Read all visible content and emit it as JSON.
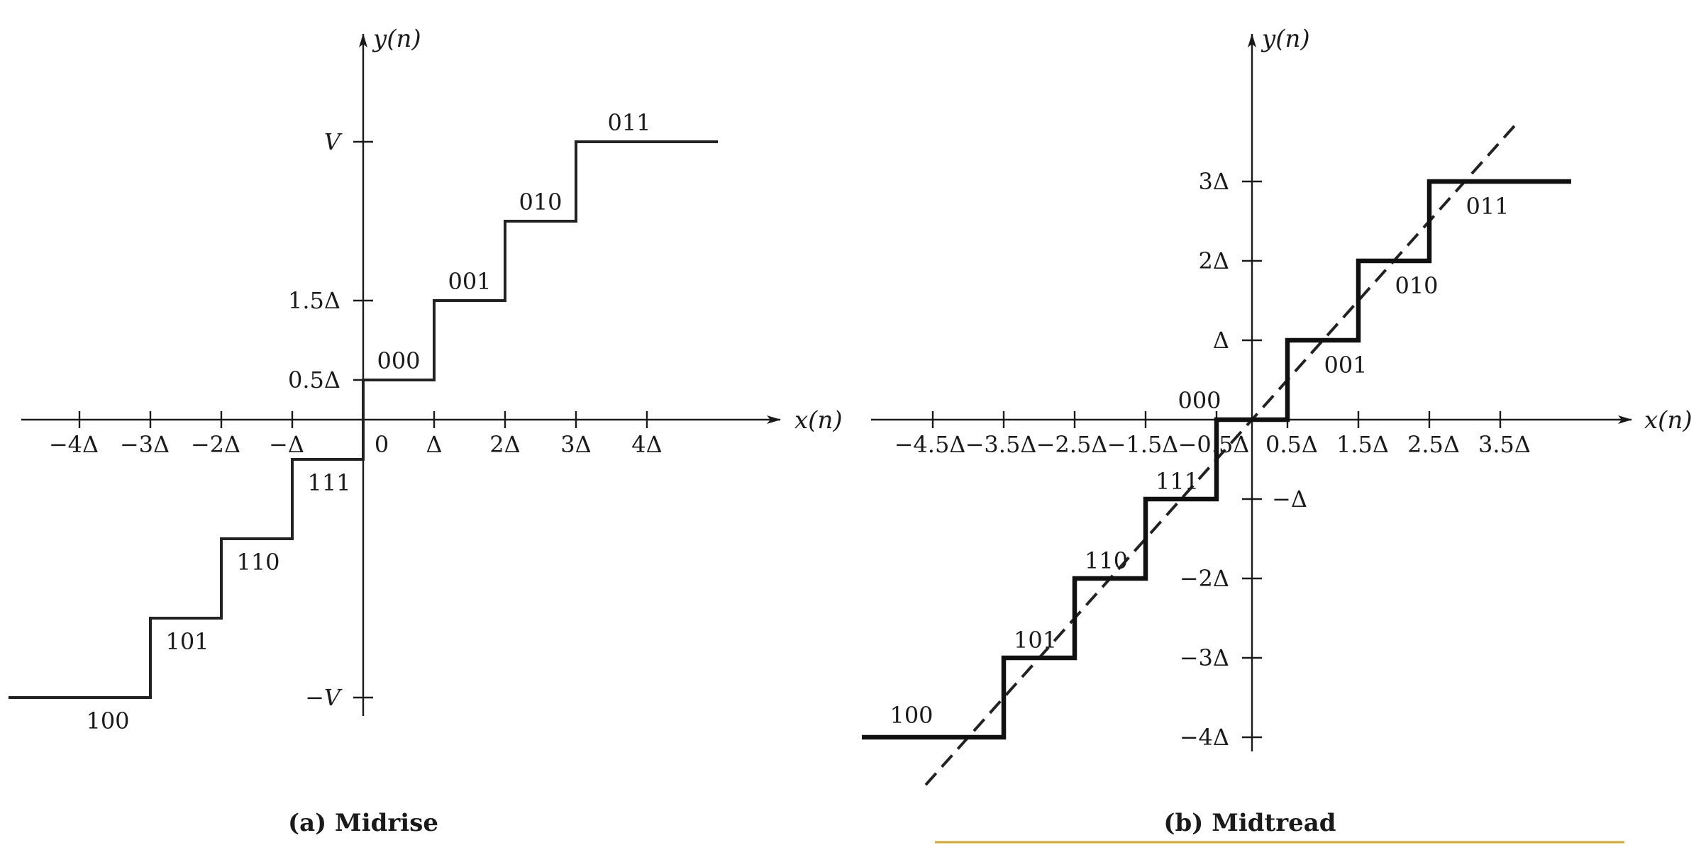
{
  "panel_a": {
    "caption": "(a) Midrise",
    "x_axis_label": "x(n)",
    "y_axis_label": "y(n)",
    "x_tick_labels": [
      "−4Δ",
      "−3Δ",
      "−2Δ",
      "−Δ",
      "0",
      "Δ",
      "2Δ",
      "3Δ",
      "4Δ"
    ],
    "y_tick_labels": [
      "V",
      "1.5Δ",
      "0.5Δ",
      "−V"
    ],
    "codes": [
      "100",
      "101",
      "110",
      "111",
      "000",
      "001",
      "010",
      "011"
    ]
  },
  "panel_b": {
    "caption": "(b) Midtread",
    "x_axis_label": "x(n)",
    "y_axis_label": "y(n)",
    "x_tick_labels": [
      "−4.5Δ",
      "−3.5Δ",
      "−2.5Δ",
      "−1.5Δ",
      "−0.5Δ",
      "0.5Δ",
      "1.5Δ",
      "2.5Δ",
      "3.5Δ"
    ],
    "y_tick_labels": [
      "3Δ",
      "2Δ",
      "Δ",
      "−Δ",
      "−2Δ",
      "−3Δ",
      "−4Δ"
    ],
    "codes": [
      "100",
      "101",
      "110",
      "111",
      "000",
      "001",
      "010",
      "011"
    ]
  },
  "chart_data": [
    {
      "type": "line",
      "title": "(a) Midrise",
      "xlabel": "x(n)",
      "ylabel": "y(n)",
      "x_unit": "Δ",
      "transfer_function_steps": [
        {
          "code": "100",
          "x_range": [
            -5,
            -3
          ],
          "y": -3.5
        },
        {
          "code": "101",
          "x_range": [
            -3,
            -2
          ],
          "y": -2.5
        },
        {
          "code": "110",
          "x_range": [
            -2,
            -1
          ],
          "y": -1.5
        },
        {
          "code": "111",
          "x_range": [
            -1,
            0
          ],
          "y": -0.5
        },
        {
          "code": "000",
          "x_range": [
            0,
            1
          ],
          "y": 0.5
        },
        {
          "code": "001",
          "x_range": [
            1,
            2
          ],
          "y": 1.5
        },
        {
          "code": "010",
          "x_range": [
            2,
            3
          ],
          "y": 2.5
        },
        {
          "code": "011",
          "x_range": [
            3,
            5
          ],
          "y": 3.5
        }
      ]
    },
    {
      "type": "line",
      "title": "(b) Midtread",
      "xlabel": "x(n)",
      "ylabel": "y(n)",
      "x_unit": "Δ",
      "transfer_function_steps": [
        {
          "code": "100",
          "x_range": [
            -5.5,
            -3.5
          ],
          "y": -4
        },
        {
          "code": "101",
          "x_range": [
            -3.5,
            -2.5
          ],
          "y": -3
        },
        {
          "code": "110",
          "x_range": [
            -2.5,
            -1.5
          ],
          "y": -2
        },
        {
          "code": "111",
          "x_range": [
            -1.5,
            -0.5
          ],
          "y": -1
        },
        {
          "code": "000",
          "x_range": [
            -0.5,
            0.5
          ],
          "y": 0
        },
        {
          "code": "001",
          "x_range": [
            0.5,
            1.5
          ],
          "y": 1
        },
        {
          "code": "010",
          "x_range": [
            1.5,
            2.5
          ],
          "y": 2
        },
        {
          "code": "011",
          "x_range": [
            2.5,
            4.5
          ],
          "y": 3
        }
      ],
      "reference_line": {
        "style": "dashed",
        "slope": 1,
        "x_range": [
          -4.6,
          3.7
        ]
      }
    }
  ]
}
